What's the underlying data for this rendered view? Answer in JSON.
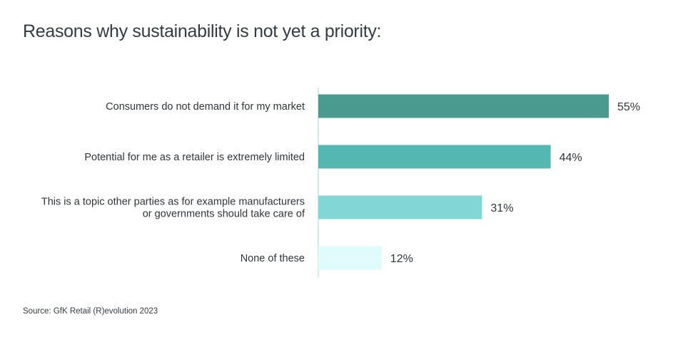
{
  "chart_data": {
    "type": "bar",
    "orientation": "horizontal",
    "title": "Reasons why sustainability is not yet a priority:",
    "source": "Source: GfK Retail (R)evolution 2023",
    "categories": [
      [
        "Consumers do not demand it for my market"
      ],
      [
        "Potential for me as a retailer is extremely limited"
      ],
      [
        "This is a topic other parties as for example manufacturers",
        "or governments should take care of"
      ],
      [
        "None of these"
      ]
    ],
    "values": [
      55,
      44,
      31,
      12
    ],
    "value_labels": [
      "55%",
      "44%",
      "31%",
      "12%"
    ],
    "colors": [
      "#4a9a90",
      "#55b8b0",
      "#82d6d4",
      "#e0fbfc"
    ],
    "xlim": [
      0,
      55
    ],
    "grid": false,
    "legend": "none"
  }
}
